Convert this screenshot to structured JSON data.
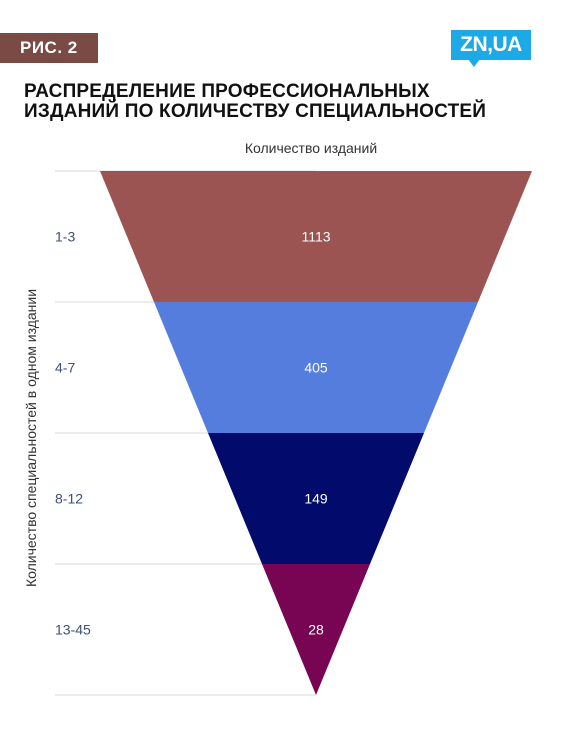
{
  "header": {
    "figure_label": "РИС. 2",
    "logo_text": "ZN,UA",
    "title_lines": [
      "РАСПРЕДЕЛЕНИЕ ПРОФЕССИОНАЛЬНЫХ",
      "ИЗДАНИЙ ПО КОЛИЧЕСТВУ СПЕЦИАЛЬНОСТЕЙ"
    ]
  },
  "colors": {
    "badge": "#7a4a45",
    "logo": "#1da9e6",
    "category_label": "#3d4f7a",
    "gridline": "#d9d9d9"
  },
  "chart_data": {
    "type": "funnel",
    "title": "РАСПРЕДЕЛЕНИЕ ПРОФЕССИОНАЛЬНЫХ ИЗДАНИЙ ПО КОЛИЧЕСТВУ СПЕЦИАЛЬНОСТЕЙ",
    "xlabel": "Количество изданий",
    "ylabel": "Количество специальностей в одном издании",
    "categories": [
      "1-3",
      "4-7",
      "8-12",
      "13-45"
    ],
    "values": [
      1113,
      405,
      149,
      28
    ],
    "value_labels": [
      "1113",
      "405",
      "149",
      "28"
    ],
    "colors": [
      "#9b5452",
      "#547ddd",
      "#020b6c",
      "#780454"
    ],
    "grid": true
  }
}
